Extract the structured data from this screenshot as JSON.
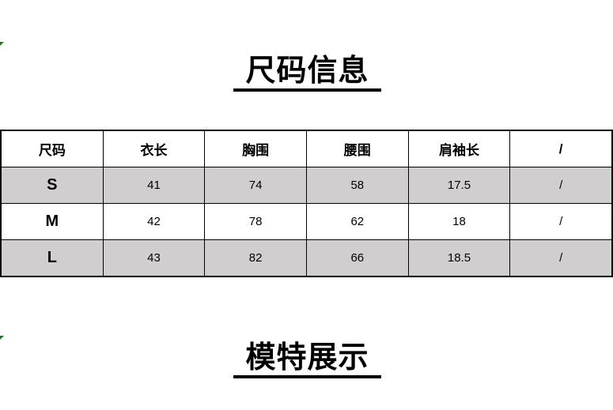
{
  "size_section": {
    "title": "尺码信息",
    "columns": [
      "尺码",
      "衣长",
      "胸围",
      "腰围",
      "肩袖长",
      "/"
    ],
    "rows": [
      {
        "size": "S",
        "length": "41",
        "chest": "74",
        "waist": "58",
        "shoulder_sleeve": "17.5",
        "extra": "/"
      },
      {
        "size": "M",
        "length": "42",
        "chest": "78",
        "waist": "62",
        "shoulder_sleeve": "18",
        "extra": "/"
      },
      {
        "size": "L",
        "length": "43",
        "chest": "82",
        "waist": "66",
        "shoulder_sleeve": "18.5",
        "extra": "/"
      }
    ],
    "shaded_row_color": "#d0cece"
  },
  "model_section": {
    "title": "模特展示"
  },
  "comment_indicator_color": "#1a7a1a"
}
